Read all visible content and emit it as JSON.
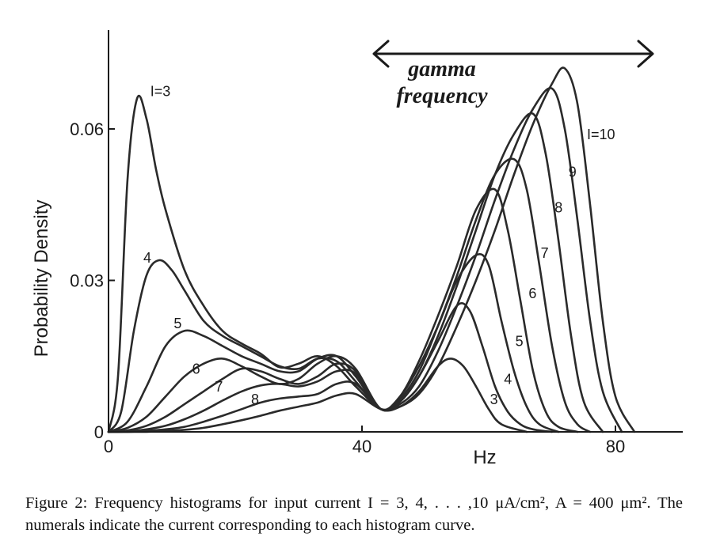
{
  "chart_data": {
    "type": "line",
    "xlabel": "Hz",
    "ylabel": "Probability Density",
    "xlim": [
      0,
      90
    ],
    "ylim": [
      0,
      0.08
    ],
    "x_ticks": [
      0,
      40,
      80
    ],
    "x_tick_labels": [
      "0",
      "40",
      "80"
    ],
    "y_ticks": [
      0,
      0.03,
      0.06
    ],
    "y_tick_labels": [
      "0",
      "0.03",
      "0.06"
    ],
    "grid": false,
    "annotation": {
      "text_line1": "gamma",
      "text_line2": "frequency",
      "x_start": 42,
      "x_end": 86
    },
    "series": [
      {
        "name": "I=3",
        "label": "I=3",
        "label_xy": [
          6.6,
          0.0665
        ],
        "x": [
          0,
          1.5,
          3,
          4.5,
          6,
          7.5,
          9,
          12,
          15,
          18,
          21,
          24,
          27,
          30,
          33,
          36,
          39,
          43,
          46,
          49,
          52,
          54,
          56,
          58,
          60,
          62,
          66
        ],
        "y": [
          0,
          0.011,
          0.05,
          0.066,
          0.062,
          0.052,
          0.044,
          0.032,
          0.025,
          0.02,
          0.0175,
          0.0155,
          0.0128,
          0.0135,
          0.015,
          0.013,
          0.009,
          0.0045,
          0.005,
          0.008,
          0.013,
          0.0145,
          0.013,
          0.009,
          0.0045,
          0.0015,
          0
        ]
      },
      {
        "name": "I=4",
        "label": "4",
        "label_xy": [
          5.5,
          0.0335
        ],
        "x": [
          0,
          2,
          4,
          6,
          8,
          10,
          12,
          15,
          18,
          21,
          24,
          27,
          30,
          33,
          36,
          39,
          43,
          46,
          49,
          52,
          55,
          57,
          59,
          61,
          63,
          65,
          67,
          70
        ],
        "y": [
          0,
          0.004,
          0.02,
          0.031,
          0.034,
          0.032,
          0.028,
          0.022,
          0.019,
          0.017,
          0.015,
          0.013,
          0.0125,
          0.0145,
          0.014,
          0.01,
          0.0045,
          0.006,
          0.011,
          0.018,
          0.025,
          0.024,
          0.017,
          0.009,
          0.004,
          0.0015,
          0.0005,
          0
        ]
      },
      {
        "name": "I=5",
        "label": "5",
        "label_xy": [
          10.3,
          0.0205
        ],
        "x": [
          0,
          3,
          6,
          9,
          12,
          15,
          18,
          21,
          24,
          27,
          30,
          33,
          36,
          39,
          43,
          46,
          49,
          52,
          55,
          58,
          60,
          62,
          64,
          66,
          68,
          71
        ],
        "y": [
          0,
          0.002,
          0.009,
          0.017,
          0.02,
          0.019,
          0.017,
          0.015,
          0.0135,
          0.012,
          0.012,
          0.0145,
          0.015,
          0.011,
          0.0045,
          0.007,
          0.013,
          0.021,
          0.03,
          0.035,
          0.033,
          0.022,
          0.012,
          0.005,
          0.0015,
          0
        ]
      },
      {
        "name": "I=6",
        "label": "6",
        "label_xy": [
          13.2,
          0.0115
        ],
        "x": [
          0,
          3,
          6,
          9,
          12,
          15,
          18,
          21,
          24,
          27,
          30,
          33,
          36,
          39,
          43,
          46,
          49,
          52,
          55,
          58,
          61,
          63,
          65,
          67,
          69,
          71,
          74
        ],
        "y": [
          0,
          0.0008,
          0.003,
          0.007,
          0.011,
          0.0135,
          0.0145,
          0.013,
          0.011,
          0.0095,
          0.0105,
          0.0135,
          0.015,
          0.0125,
          0.0045,
          0.007,
          0.014,
          0.023,
          0.033,
          0.044,
          0.048,
          0.04,
          0.026,
          0.012,
          0.004,
          0.001,
          0
        ]
      },
      {
        "name": "I=7",
        "label": "7",
        "label_xy": [
          16.8,
          0.008
        ],
        "x": [
          0,
          3,
          6,
          9,
          12,
          15,
          18,
          21,
          24,
          27,
          30,
          33,
          36,
          39,
          43,
          46,
          49,
          52,
          55,
          58,
          61,
          64,
          66,
          68,
          70,
          72,
          74,
          76
        ],
        "y": [
          0,
          0.0003,
          0.0012,
          0.003,
          0.0055,
          0.008,
          0.0105,
          0.0125,
          0.012,
          0.0105,
          0.0095,
          0.011,
          0.0135,
          0.012,
          0.0045,
          0.0065,
          0.012,
          0.021,
          0.031,
          0.042,
          0.051,
          0.054,
          0.048,
          0.033,
          0.017,
          0.006,
          0.0015,
          0
        ]
      },
      {
        "name": "I=8",
        "label": "8",
        "label_xy": [
          22.5,
          0.0055
        ],
        "x": [
          0,
          3,
          6,
          9,
          12,
          15,
          18,
          21,
          24,
          27,
          30,
          33,
          36,
          39,
          43,
          46,
          49,
          52,
          55,
          58,
          61,
          64,
          67,
          69,
          71,
          73,
          75,
          78
        ],
        "y": [
          0,
          0.0001,
          0.0005,
          0.0012,
          0.0025,
          0.0042,
          0.0062,
          0.008,
          0.0092,
          0.0095,
          0.009,
          0.01,
          0.012,
          0.0115,
          0.0045,
          0.006,
          0.011,
          0.019,
          0.029,
          0.04,
          0.051,
          0.059,
          0.063,
          0.055,
          0.038,
          0.019,
          0.006,
          0
        ]
      },
      {
        "name": "I=9",
        "x": [
          0,
          3,
          6,
          9,
          12,
          15,
          18,
          21,
          24,
          27,
          30,
          33,
          36,
          39,
          43,
          46,
          49,
          52,
          55,
          58,
          61,
          64,
          67,
          70,
          72,
          74,
          76,
          78,
          81
        ],
        "y": [
          0,
          0,
          0.0002,
          0.0005,
          0.001,
          0.002,
          0.0032,
          0.0045,
          0.0058,
          0.0066,
          0.007,
          0.0075,
          0.0095,
          0.0095,
          0.0045,
          0.0055,
          0.009,
          0.016,
          0.025,
          0.035,
          0.046,
          0.056,
          0.064,
          0.068,
          0.06,
          0.042,
          0.022,
          0.008,
          0
        ]
      },
      {
        "name": "I=10",
        "x": [
          0,
          3,
          6,
          9,
          12,
          15,
          18,
          21,
          24,
          27,
          30,
          33,
          36,
          39,
          43,
          46,
          49,
          52,
          55,
          58,
          61,
          64,
          67,
          70,
          72,
          74,
          76,
          78,
          80,
          83
        ],
        "y": [
          0,
          0,
          0,
          0.0002,
          0.0004,
          0.0008,
          0.0015,
          0.0023,
          0.0032,
          0.0042,
          0.005,
          0.0058,
          0.0072,
          0.0075,
          0.0045,
          0.005,
          0.0075,
          0.013,
          0.021,
          0.03,
          0.04,
          0.051,
          0.061,
          0.069,
          0.072,
          0.065,
          0.045,
          0.022,
          0.007,
          0
        ]
      }
    ],
    "extra_labels": [
      {
        "text": "I=10",
        "xy": [
          75.5,
          0.058
        ]
      },
      {
        "text": "9",
        "xy": [
          72.6,
          0.0505
        ]
      },
      {
        "text": "8",
        "xy": [
          70.4,
          0.0435
        ]
      },
      {
        "text": "7",
        "xy": [
          68.2,
          0.0345
        ]
      },
      {
        "text": "6",
        "xy": [
          66.3,
          0.0265
        ]
      },
      {
        "text": "5",
        "xy": [
          64.2,
          0.017
        ]
      },
      {
        "text": "4",
        "xy": [
          62.4,
          0.0095
        ]
      },
      {
        "text": "3",
        "xy": [
          60.2,
          0.0055
        ]
      }
    ]
  },
  "caption": "Figure 2:  Frequency histograms for input current I = 3, 4, . . . ,10 μA/cm², A = 400 μm². The numerals indicate the current corresponding to each histogram curve."
}
